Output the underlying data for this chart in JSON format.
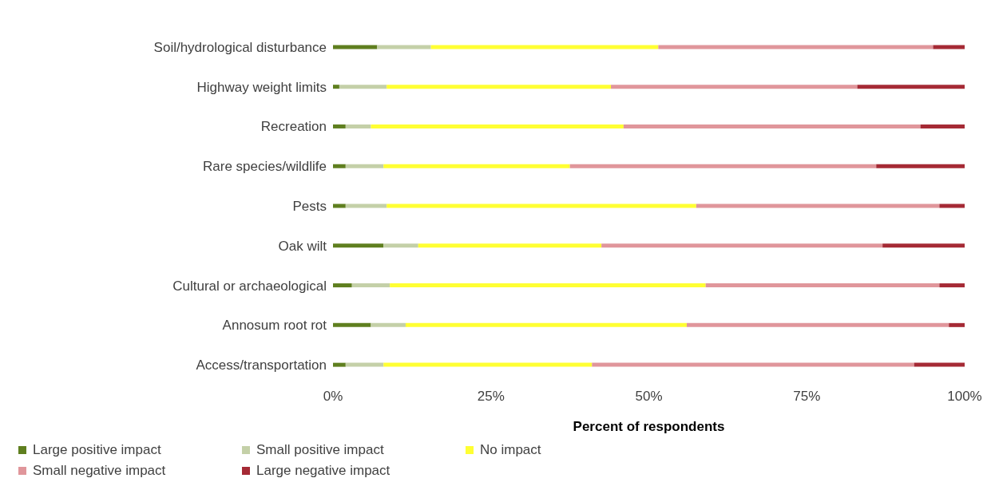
{
  "chart_data": {
    "type": "bar",
    "orientation": "horizontal",
    "stacked": true,
    "xlabel": "Percent of respondents",
    "categories": [
      "Soil/hydrological disturbance",
      "Highway weight limits",
      "Recreation",
      "Rare species/wildlife",
      "Pests",
      "Oak wilt",
      "Cultural or archaeological",
      "Annosum root rot",
      "Access/transportation"
    ],
    "series": [
      {
        "name": "Large positive impact",
        "color": "#5f7f1f",
        "values": [
          7,
          1,
          2,
          2,
          2,
          8,
          3,
          6,
          2
        ]
      },
      {
        "name": "Small positive impact",
        "color": "#c4d0a8",
        "values": [
          8.5,
          7.5,
          4,
          6,
          6.5,
          5.5,
          6,
          5.5,
          6
        ]
      },
      {
        "name": "No impact",
        "color": "#ffff33",
        "values": [
          36,
          35.5,
          40,
          29.5,
          49,
          29,
          50,
          44.5,
          33
        ]
      },
      {
        "name": "Small negative impact",
        "color": "#e0969b",
        "values": [
          43.5,
          39,
          47,
          48.5,
          38.5,
          44.5,
          37,
          41.5,
          51
        ]
      },
      {
        "name": "Large negative impact",
        "color": "#a52a35",
        "values": [
          5,
          17,
          7,
          14,
          4,
          13,
          4,
          2.5,
          8
        ]
      }
    ],
    "xlim": [
      0,
      100
    ],
    "xticks": [
      {
        "value": 0,
        "label": "0%"
      },
      {
        "value": 25,
        "label": "25%"
      },
      {
        "value": 50,
        "label": "50%"
      },
      {
        "value": 75,
        "label": "75%"
      },
      {
        "value": 100,
        "label": "100%"
      }
    ],
    "grid": false,
    "legend": "bottom"
  }
}
